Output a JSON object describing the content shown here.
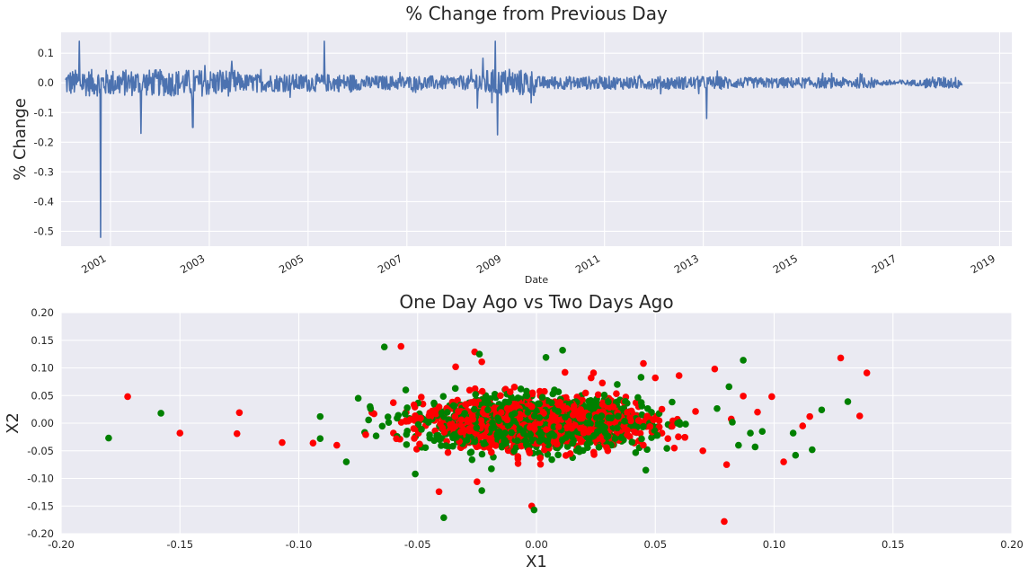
{
  "chart_data": [
    {
      "type": "line",
      "title": "% Change from Previous Day",
      "xlabel": "Date",
      "ylabel": "% Change",
      "xlim": [
        "2000-01-01",
        "2019-04-01"
      ],
      "ylim": [
        -0.55,
        0.17
      ],
      "x_ticks": [
        "2001",
        "2003",
        "2005",
        "2007",
        "2009",
        "2011",
        "2013",
        "2015",
        "2017",
        "2019"
      ],
      "y_ticks": [
        "0.1",
        "0.0",
        "-0.1",
        "-0.2",
        "-0.3",
        "-0.4",
        "-0.5"
      ],
      "grid": true,
      "series": [
        {
          "color": "#4c72b0",
          "date_range": [
            "2000-02-01",
            "2018-03-31"
          ],
          "notable_points": [
            {
              "x": "2000-10-20",
              "y": -0.52
            },
            {
              "x": "2000-05-15",
              "y": 0.14
            },
            {
              "x": "2001-08-15",
              "y": -0.17
            },
            {
              "x": "2002-09-01",
              "y": -0.15
            },
            {
              "x": "2005-05-01",
              "y": 0.14
            },
            {
              "x": "2008-10-15",
              "y": 0.14
            },
            {
              "x": "2008-11-01",
              "y": -0.175
            },
            {
              "x": "2013-01-25",
              "y": -0.12
            }
          ]
        }
      ]
    },
    {
      "type": "scatter",
      "title": "One Day Ago vs Two Days Ago",
      "xlabel": "X1",
      "ylabel": "X2",
      "xlim": [
        -0.2,
        0.2
      ],
      "ylim": [
        -0.2,
        0.2
      ],
      "x_ticks": [
        "-0.20",
        "-0.15",
        "-0.10",
        "-0.05",
        "0.00",
        "0.05",
        "0.10",
        "0.15",
        "0.20"
      ],
      "y_ticks": [
        "0.20",
        "0.15",
        "0.10",
        "0.05",
        "0.00",
        "-0.05",
        "-0.10",
        "-0.15",
        "-0.20"
      ],
      "grid": true,
      "series": [
        {
          "color": "#ff0000",
          "points": [
            [
              -0.172,
              0.048
            ],
            [
              -0.15,
              -0.018
            ],
            [
              -0.125,
              0.019
            ],
            [
              -0.126,
              -0.019
            ],
            [
              -0.107,
              -0.035
            ],
            [
              -0.057,
              0.139
            ],
            [
              -0.041,
              -0.124
            ],
            [
              -0.025,
              -0.106
            ],
            [
              -0.002,
              -0.15
            ],
            [
              0.079,
              -0.178
            ],
            [
              0.128,
              0.118
            ],
            [
              0.139,
              0.091
            ],
            [
              0.136,
              0.013
            ],
            [
              0.104,
              -0.07
            ],
            [
              0.099,
              0.048
            ],
            [
              0.087,
              0.049
            ],
            [
              0.075,
              0.098
            ],
            [
              0.06,
              0.086
            ],
            [
              0.045,
              0.108
            ],
            [
              0.024,
              0.091
            ],
            [
              -0.026,
              0.129
            ],
            [
              -0.023,
              0.111
            ],
            [
              0.012,
              0.092
            ],
            [
              -0.034,
              0.102
            ],
            [
              0.023,
              0.082
            ],
            [
              0.05,
              0.082
            ],
            [
              0.093,
              0.02
            ],
            [
              0.115,
              0.012
            ],
            [
              0.112,
              -0.005
            ],
            [
              0.08,
              -0.075
            ],
            [
              -0.094,
              -0.036
            ],
            [
              -0.084,
              -0.04
            ],
            [
              0.03,
              -0.05
            ],
            [
              0.058,
              -0.045
            ],
            [
              0.07,
              -0.05
            ]
          ]
        },
        {
          "color": "#008000",
          "points": [
            [
              -0.18,
              -0.027
            ],
            [
              -0.158,
              0.018
            ],
            [
              -0.091,
              0.012
            ],
            [
              -0.091,
              -0.028
            ],
            [
              -0.08,
              -0.07
            ],
            [
              -0.064,
              0.138
            ],
            [
              -0.039,
              -0.171
            ],
            [
              -0.023,
              -0.122
            ],
            [
              -0.001,
              -0.157
            ],
            [
              0.004,
              0.119
            ],
            [
              0.011,
              0.132
            ],
            [
              -0.024,
              0.125
            ],
            [
              0.087,
              0.114
            ],
            [
              0.131,
              0.039
            ],
            [
              0.12,
              0.024
            ],
            [
              0.116,
              -0.048
            ],
            [
              0.109,
              -0.058
            ],
            [
              0.092,
              -0.043
            ],
            [
              0.085,
              -0.04
            ],
            [
              -0.051,
              -0.092
            ],
            [
              0.081,
              0.066
            ],
            [
              -0.075,
              0.045
            ],
            [
              -0.07,
              0.03
            ],
            [
              0.108,
              -0.018
            ],
            [
              0.09,
              -0.018
            ],
            [
              0.095,
              -0.015
            ],
            [
              -0.055,
              0.06
            ],
            [
              0.034,
              0.07
            ],
            [
              0.046,
              -0.085
            ],
            [
              0.044,
              0.083
            ]
          ]
        }
      ]
    }
  ]
}
